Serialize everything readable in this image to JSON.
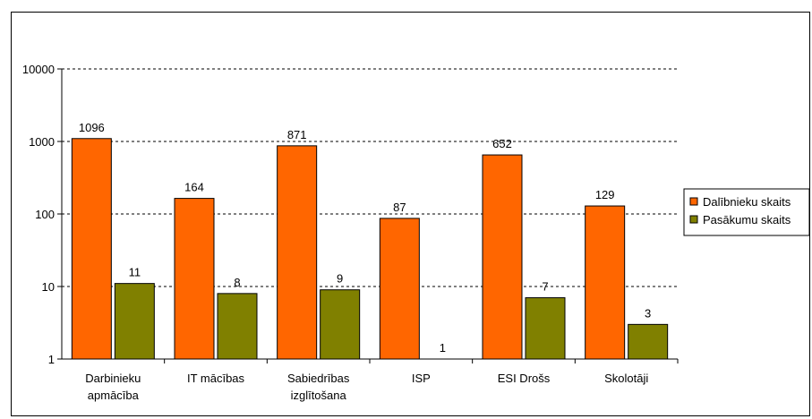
{
  "chart_data": {
    "type": "bar",
    "yscale": "log",
    "ylim": [
      1,
      10000
    ],
    "yticks": [
      "1",
      "10",
      "100",
      "1000",
      "10000"
    ],
    "categories": [
      [
        "Darbinieku",
        "apmācība"
      ],
      [
        "IT mācības"
      ],
      [
        "Sabiedrības",
        "izglītošana"
      ],
      [
        "ISP"
      ],
      [
        "ESI Drošs"
      ],
      [
        "Skolotāji"
      ]
    ],
    "series": [
      {
        "name": "Dalībnieku skaits",
        "color": "#FF6600",
        "values": [
          1096,
          164,
          871,
          87,
          652,
          129
        ]
      },
      {
        "name": "Pasākumu skaits",
        "color": "#808000",
        "values": [
          11,
          8,
          9,
          1,
          7,
          3
        ]
      }
    ],
    "grid": "horizontal dashed",
    "legend": "right"
  }
}
